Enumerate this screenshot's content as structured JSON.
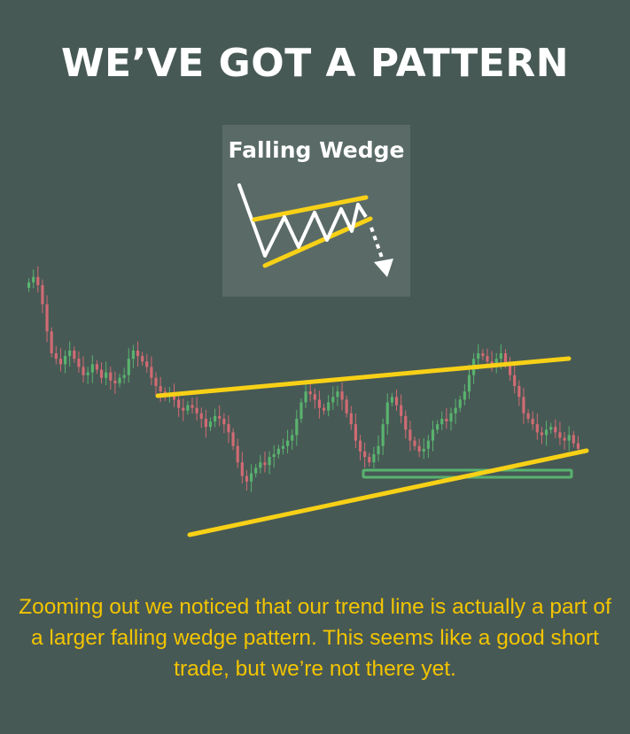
{
  "page": {
    "title": "WE’VE GOT A PATTERN",
    "inset_label": "Falling Wedge",
    "caption": "Zooming out we noticed that our trend line is actually a part of a larger falling wedge pattern. This seems like a good short trade, but we’re not there yet."
  },
  "colors": {
    "background": "#475955",
    "inset_background": "#5a6b67",
    "bullish": "#59b36e",
    "bearish": "#d16b73",
    "trendline": "#f8d117",
    "support_zone": "#58b36f",
    "caption": "#f2c400",
    "title": "#ffffff"
  },
  "chart_data": {
    "type": "candlestick",
    "title": "",
    "xlabel": "",
    "ylabel": "",
    "ylim": [
      0,
      100
    ],
    "grid": false,
    "legend": "none",
    "closes": [
      88,
      90,
      87,
      80,
      70,
      62,
      60,
      58,
      61,
      63,
      60,
      57,
      54,
      55,
      58,
      56,
      53,
      55,
      52,
      51,
      53,
      54,
      60,
      63,
      61,
      59,
      57,
      53,
      50,
      48,
      46,
      47,
      45,
      42,
      41,
      43,
      42,
      40,
      38,
      35,
      37,
      39,
      38,
      36,
      33,
      28,
      22,
      17,
      15,
      18,
      20,
      22,
      21,
      24,
      25,
      27,
      28,
      30,
      32,
      38,
      44,
      48,
      47,
      45,
      42,
      41,
      44,
      46,
      48,
      45,
      40,
      36,
      30,
      26,
      24,
      22,
      25,
      28,
      36,
      44,
      46,
      43,
      39,
      34,
      30,
      28,
      26,
      27,
      30,
      34,
      36,
      38,
      37,
      40,
      42,
      45,
      48,
      54,
      60,
      62,
      61,
      59,
      58,
      60,
      62,
      58,
      54,
      50,
      46,
      40,
      38,
      36,
      33,
      32,
      34,
      35,
      33,
      31,
      30,
      32,
      29,
      27
    ],
    "pattern": {
      "name": "Falling Wedge",
      "upper_line": [
        {
          "x": 0,
          "y": 50
        },
        {
          "x": 1,
          "y": 66
        }
      ],
      "lower_line": [
        {
          "x": 0,
          "y": 0
        },
        {
          "x": 1,
          "y": 33
        }
      ],
      "support_zone": [
        {
          "x": 0.51,
          "y": 24
        },
        {
          "x": 1,
          "y": 26
        }
      ]
    }
  }
}
